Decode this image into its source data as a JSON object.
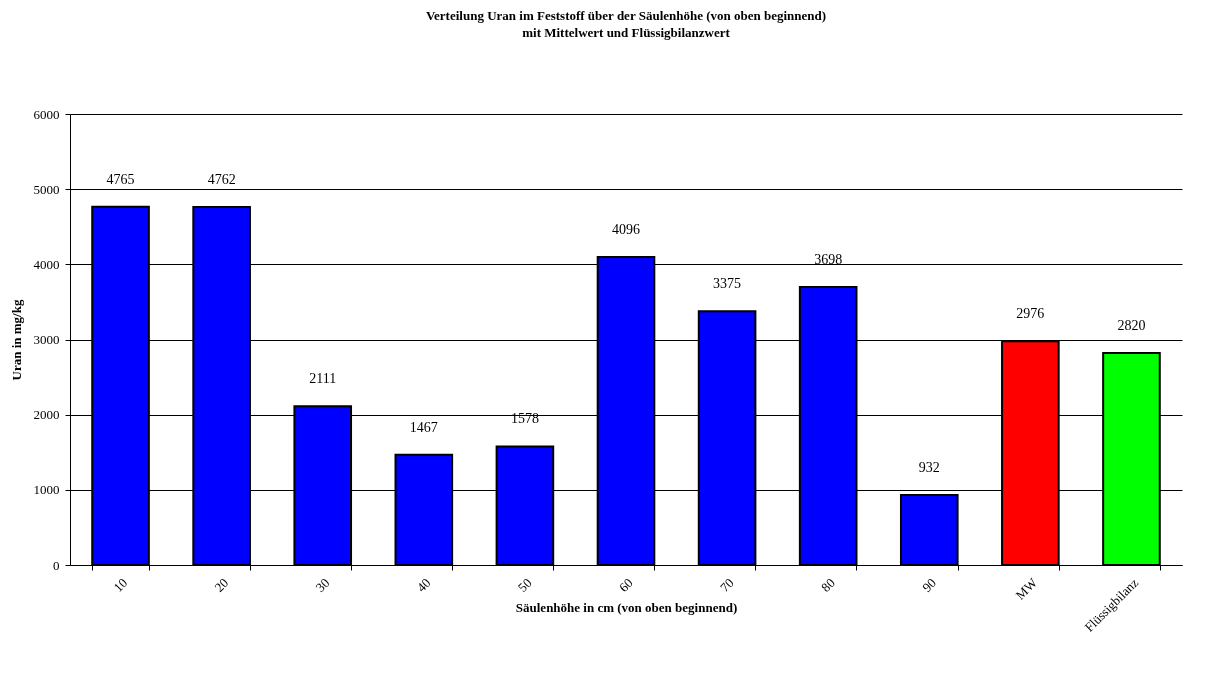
{
  "chart_data": {
    "type": "bar",
    "title": "Verteilung Uran im Feststoff über der Säulenhöhe (von oben beginnend)",
    "subtitle": "mit Mittelwert und Flüssigbilanzwert",
    "xlabel": "Säulenhöhe in cm (von oben beginnend)",
    "ylabel": "Uran in mg/kg",
    "categories": [
      "10",
      "20",
      "30",
      "40",
      "50",
      "60",
      "70",
      "80",
      "90",
      "MW",
      "Flüssigbilanz"
    ],
    "values": [
      4765,
      4762,
      2111,
      1467,
      1578,
      4096,
      3375,
      3698,
      932,
      2976,
      2820
    ],
    "colors": [
      "#0000ff",
      "#0000ff",
      "#0000ff",
      "#0000ff",
      "#0000ff",
      "#0000ff",
      "#0000ff",
      "#0000ff",
      "#0000ff",
      "#ff0000",
      "#00ff00"
    ],
    "ylim": [
      0,
      6000
    ],
    "yticks": [
      0,
      1000,
      2000,
      3000,
      4000,
      5000,
      6000
    ],
    "grid": "y",
    "data_labels": true
  }
}
